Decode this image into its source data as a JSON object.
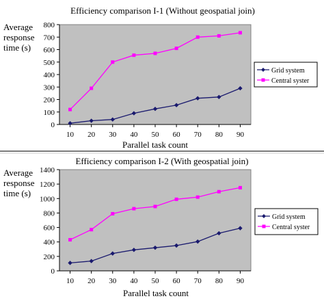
{
  "chart_data": [
    {
      "type": "line",
      "title": "Efficiency comparison I-1 (Without geospatial join)",
      "ylabel_lines": [
        "Average",
        "response",
        "time (s)"
      ],
      "xlabel": "Parallel task count",
      "categories": [
        "10",
        "20",
        "30",
        "40",
        "50",
        "60",
        "70",
        "80",
        "90"
      ],
      "ylim": [
        0,
        800
      ],
      "yticks": [
        0,
        100,
        200,
        300,
        400,
        500,
        600,
        700,
        800
      ],
      "grid": false,
      "legend_position": "right",
      "series": [
        {
          "name": "Grid system",
          "color": "#1a1a6e",
          "marker": "diamond",
          "values": [
            10,
            30,
            40,
            90,
            125,
            155,
            210,
            220,
            290
          ]
        },
        {
          "name": "Central syster",
          "color": "#ff00ff",
          "marker": "square",
          "values": [
            120,
            290,
            500,
            555,
            570,
            610,
            700,
            710,
            735
          ]
        }
      ]
    },
    {
      "type": "line",
      "title": "Efficiency comparison I-2 (With geospatial join)",
      "ylabel_lines": [
        "Average",
        "response",
        "time (s)"
      ],
      "xlabel": "Parallel task count",
      "categories": [
        "10",
        "20",
        "30",
        "40",
        "50",
        "60",
        "70",
        "80",
        "90"
      ],
      "ylim": [
        0,
        1400
      ],
      "yticks": [
        0,
        200,
        400,
        600,
        800,
        1000,
        1200,
        1400
      ],
      "grid": false,
      "legend_position": "right",
      "series": [
        {
          "name": "Grid system",
          "color": "#1a1a6e",
          "marker": "diamond",
          "values": [
            110,
            135,
            240,
            290,
            320,
            350,
            405,
            520,
            590
          ]
        },
        {
          "name": "Central syster",
          "color": "#ff00ff",
          "marker": "square",
          "values": [
            430,
            570,
            790,
            860,
            890,
            990,
            1020,
            1095,
            1150
          ]
        }
      ]
    }
  ]
}
